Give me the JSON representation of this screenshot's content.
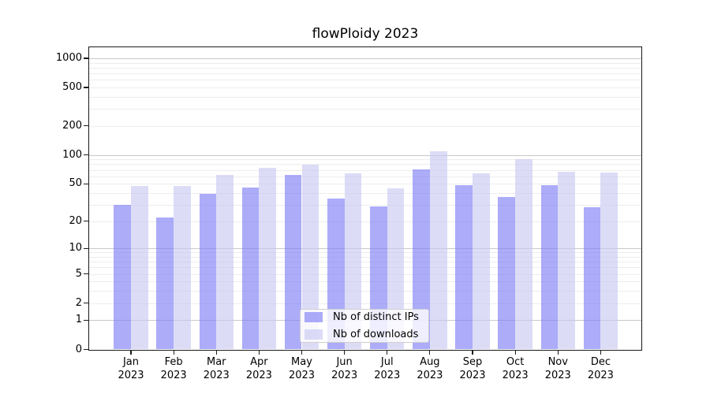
{
  "chart_data": {
    "type": "bar",
    "title": "flowPloidy 2023",
    "categories": [
      "Jan",
      "Feb",
      "Mar",
      "Apr",
      "May",
      "Jun",
      "Jul",
      "Aug",
      "Sep",
      "Oct",
      "Nov",
      "Dec"
    ],
    "x_year_suffix": "2023",
    "series": [
      {
        "name": "Nb of distinct IPs",
        "color": "#7c7cf5",
        "alpha": 0.63,
        "values": [
          30,
          22,
          39,
          46,
          62,
          35,
          29,
          71,
          48,
          36,
          48,
          28
        ]
      },
      {
        "name": "Nb of downloads",
        "color": "#c7c7f3",
        "alpha": 0.63,
        "values": [
          47,
          47,
          62,
          74,
          79,
          64,
          45,
          110,
          64,
          91,
          67,
          66
        ]
      }
    ],
    "xlabel": "",
    "ylabel": "",
    "yscale": "log1p",
    "ylim": [
      0,
      1000
    ],
    "yticks": [
      0,
      1,
      2,
      5,
      10,
      20,
      50,
      100,
      200,
      500,
      1000
    ],
    "grid": {
      "on": true,
      "major_lines": [
        1,
        10,
        100,
        1000
      ],
      "minor_multipliers": [
        2,
        3,
        4,
        5,
        6,
        7,
        8,
        9
      ],
      "minor_decades": [
        1,
        10,
        100
      ]
    },
    "legend": {
      "position": "lower center",
      "entries": [
        "Nb of distinct IPs",
        "Nb of downloads"
      ]
    }
  },
  "colors": {
    "background": "#ffffff",
    "major_grid": "#c8c8c8",
    "minor_grid": "#ededed",
    "spine": "#1a1a1a",
    "text": "#000000",
    "legend_border": "#cfcfcf"
  }
}
